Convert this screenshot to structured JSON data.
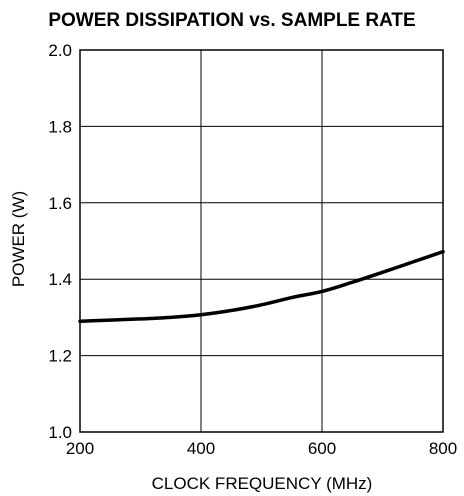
{
  "chart_data": {
    "type": "line",
    "title": "POWER DISSIPATION vs. SAMPLE RATE",
    "xlabel": "CLOCK FREQUENCY (MHz)",
    "ylabel": "POWER (W)",
    "xlim": [
      200,
      800
    ],
    "ylim": [
      1.0,
      2.0
    ],
    "xticks": [
      "200",
      "400",
      "600",
      "800"
    ],
    "yticks": [
      "1.0",
      "1.2",
      "1.4",
      "1.6",
      "1.8",
      "2.0"
    ],
    "grid": true,
    "series": [
      {
        "x": [
          200,
          250,
          300,
          350,
          400,
          450,
          500,
          550,
          600,
          650,
          700,
          750,
          800
        ],
        "y": [
          1.29,
          1.293,
          1.296,
          1.3,
          1.307,
          1.318,
          1.333,
          1.352,
          1.368,
          1.392,
          1.418,
          1.445,
          1.472
        ]
      }
    ],
    "colors": {
      "line": "#000000",
      "grid": "#000000",
      "background": "#ffffff"
    }
  }
}
